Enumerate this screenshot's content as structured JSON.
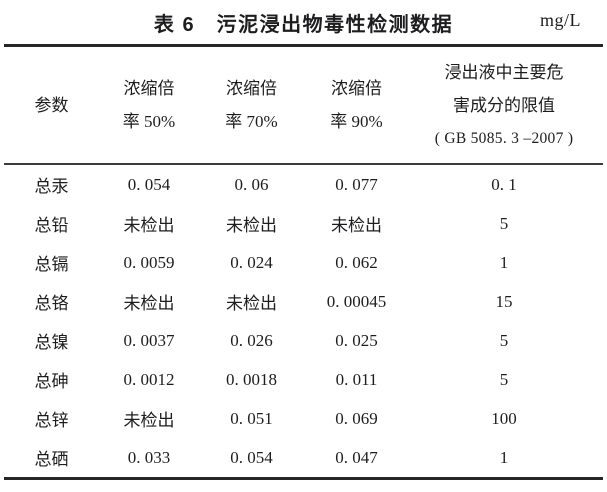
{
  "title": "表 6　污泥浸出物毒性检测数据",
  "unit": "mg/L",
  "colors": {
    "background": "#ffffff",
    "text": "#1d1d1f",
    "rule": "#262626"
  },
  "table": {
    "columns": [
      "param",
      "c50",
      "c70",
      "c90",
      "limit"
    ],
    "header": {
      "param": [
        "参数"
      ],
      "c50": [
        "浓缩倍",
        "率 50%"
      ],
      "c70": [
        "浓缩倍",
        "率 70%"
      ],
      "c90": [
        "浓缩倍",
        "率 90%"
      ],
      "limit": [
        "浸出液中主要危",
        "害成分的限值",
        "( GB 5085. 3 –2007 )"
      ]
    },
    "not_detected_label": "未检出",
    "rows": [
      {
        "param": "总汞",
        "c50": "0.054",
        "c70": "0.06",
        "c90": "0.077",
        "limit": "0.1"
      },
      {
        "param": "总铅",
        "c50": "未检出",
        "c70": "未检出",
        "c90": "未检出",
        "limit": "5"
      },
      {
        "param": "总镉",
        "c50": "0.0059",
        "c70": "0.024",
        "c90": "0.062",
        "limit": "1"
      },
      {
        "param": "总铬",
        "c50": "未检出",
        "c70": "未检出",
        "c90": "0.00045",
        "limit": "15"
      },
      {
        "param": "总镍",
        "c50": "0.0037",
        "c70": "0.026",
        "c90": "0.025",
        "limit": "5"
      },
      {
        "param": "总砷",
        "c50": "0.0012",
        "c70": "0.0018",
        "c90": "0.011",
        "limit": "5"
      },
      {
        "param": "总锌",
        "c50": "未检出",
        "c70": "0.051",
        "c90": "0.069",
        "limit": "100"
      },
      {
        "param": "总硒",
        "c50": "0.033",
        "c70": "0.054",
        "c90": "0.047",
        "limit": "1"
      }
    ]
  }
}
